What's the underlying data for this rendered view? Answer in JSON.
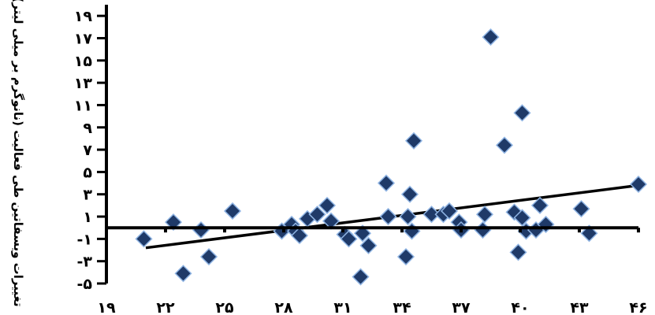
{
  "chart_data": {
    "type": "scatter",
    "title": "",
    "xlabel": "",
    "ylabel": "تغییرات ویسفاتین طی فعالیت (نانوگرم بر میلی لیتر)",
    "xlim": [
      19,
      46
    ],
    "ylim": [
      -5,
      20
    ],
    "x_ticks": [
      19,
      22,
      25,
      28,
      31,
      34,
      37,
      40,
      43,
      46
    ],
    "x_tick_labels": [
      "۱۹",
      "۲۲",
      "۲۵",
      "۲۸",
      "۳۱",
      "۳۴",
      "۳۷",
      "۴۰",
      "۴۳",
      "۴۶"
    ],
    "y_ticks": [
      -5,
      -3,
      -1,
      1,
      3,
      5,
      7,
      9,
      11,
      13,
      15,
      17,
      19
    ],
    "y_tick_labels": [
      "-۵",
      "-۳",
      "-۱",
      "۱",
      "۳",
      "۵",
      "۷",
      "۹",
      "۱۱",
      "۱۳",
      "۱۵",
      "۱۷",
      "۱۹"
    ],
    "baseline": 0,
    "marker": "diamond",
    "colors": {
      "marker_fill": "#1f3a68",
      "marker_stroke": "#8fb4e3",
      "line": "#000000"
    },
    "series": [
      {
        "points": [
          [
            20.9,
            -1
          ],
          [
            22.4,
            0.5
          ],
          [
            22.9,
            -4.1
          ],
          [
            23.8,
            -0.2
          ],
          [
            24.2,
            -2.6
          ],
          [
            25.4,
            1.5
          ],
          [
            27.9,
            -0.3
          ],
          [
            28.4,
            0.3
          ],
          [
            28.6,
            -0.3
          ],
          [
            28.8,
            -0.7
          ],
          [
            29.2,
            0.8
          ],
          [
            29.7,
            1.2
          ],
          [
            30.2,
            2.0
          ],
          [
            30.4,
            0.6
          ],
          [
            31.1,
            -0.6
          ],
          [
            31.3,
            -1.0
          ],
          [
            31.9,
            -4.4
          ],
          [
            32.0,
            -0.5
          ],
          [
            32.3,
            -1.6
          ],
          [
            33.2,
            4.0
          ],
          [
            33.3,
            1.0
          ],
          [
            34.2,
            -2.6
          ],
          [
            34.3,
            1.0
          ],
          [
            34.4,
            3.0
          ],
          [
            34.5,
            -0.3
          ],
          [
            34.6,
            7.8
          ],
          [
            35.5,
            1.2
          ],
          [
            36.1,
            1.2
          ],
          [
            36.4,
            1.5
          ],
          [
            36.9,
            0.5
          ],
          [
            37.0,
            -0.2
          ],
          [
            38.1,
            -0.2
          ],
          [
            38.2,
            1.2
          ],
          [
            38.5,
            17.1
          ],
          [
            39.2,
            7.4
          ],
          [
            39.7,
            1.4
          ],
          [
            39.9,
            -2.2
          ],
          [
            40.1,
            10.3
          ],
          [
            40.1,
            0.9
          ],
          [
            40.3,
            -0.3
          ],
          [
            40.8,
            -0.2
          ],
          [
            41.0,
            2.0
          ],
          [
            41.3,
            0.3
          ],
          [
            43.1,
            1.7
          ],
          [
            43.5,
            -0.5
          ],
          [
            46.0,
            3.9
          ]
        ]
      }
    ],
    "trendline": {
      "x": [
        21,
        46
      ],
      "y": [
        -1.8,
        3.8
      ]
    }
  }
}
